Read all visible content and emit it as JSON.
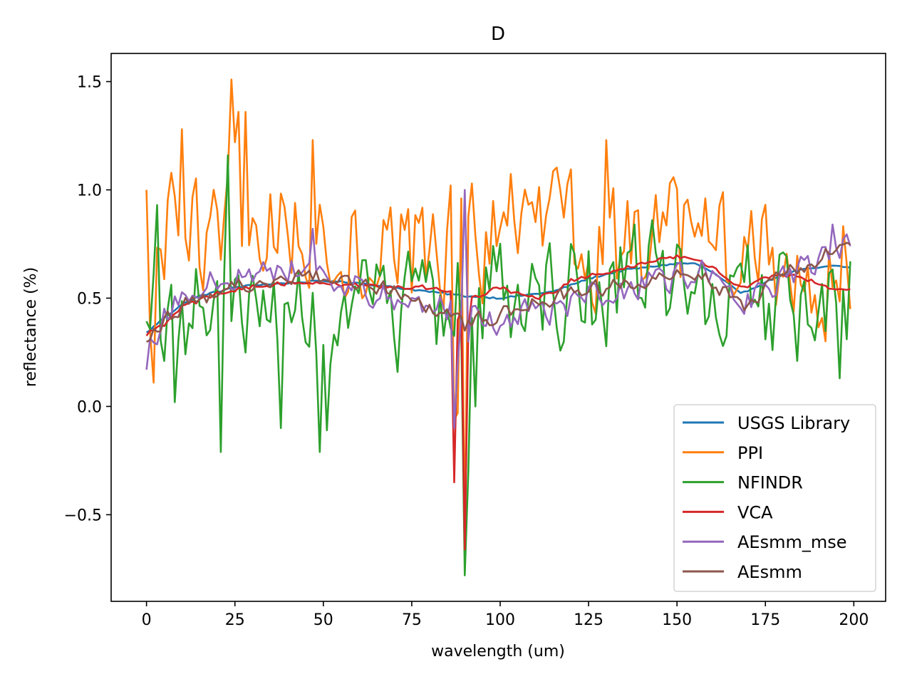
{
  "chart_data": {
    "type": "line",
    "title": "D",
    "xlabel": "wavelength (um)",
    "ylabel": "reflectance (%)",
    "xlim": [
      -10,
      209
    ],
    "ylim": [
      -0.9,
      1.63
    ],
    "xticks": [
      0,
      25,
      50,
      75,
      100,
      125,
      150,
      175,
      200
    ],
    "yticks": [
      -0.5,
      0.0,
      0.5,
      1.0,
      1.5
    ],
    "ytick_labels": [
      "−0.5",
      "0.0",
      "0.5",
      "1.0",
      "1.5"
    ],
    "legend_position": "lower-right",
    "series": [
      {
        "name": "USGS Library",
        "color": "#1f77b4",
        "kind": "smooth",
        "knots": [
          [
            0,
            0.34
          ],
          [
            5,
            0.41
          ],
          [
            10,
            0.47
          ],
          [
            15,
            0.51
          ],
          [
            20,
            0.53
          ],
          [
            25,
            0.55
          ],
          [
            30,
            0.56
          ],
          [
            40,
            0.57
          ],
          [
            50,
            0.58
          ],
          [
            60,
            0.57
          ],
          [
            70,
            0.55
          ],
          [
            80,
            0.53
          ],
          [
            90,
            0.51
          ],
          [
            100,
            0.5
          ],
          [
            105,
            0.51
          ],
          [
            110,
            0.52
          ],
          [
            115,
            0.53
          ],
          [
            120,
            0.56
          ],
          [
            125,
            0.59
          ],
          [
            130,
            0.61
          ],
          [
            135,
            0.63
          ],
          [
            140,
            0.64
          ],
          [
            145,
            0.65
          ],
          [
            150,
            0.66
          ],
          [
            155,
            0.66
          ],
          [
            160,
            0.62
          ],
          [
            165,
            0.56
          ],
          [
            168,
            0.52
          ],
          [
            172,
            0.55
          ],
          [
            176,
            0.58
          ],
          [
            180,
            0.61
          ],
          [
            185,
            0.63
          ],
          [
            190,
            0.64
          ],
          [
            195,
            0.65
          ],
          [
            199,
            0.64
          ]
        ],
        "noise": 0.004,
        "spikes": []
      },
      {
        "name": "PPI",
        "color": "#ff7f0e",
        "kind": "noisy",
        "knots": [
          [
            0,
            0.72
          ],
          [
            25,
            0.85
          ],
          [
            50,
            0.8
          ],
          [
            75,
            0.7
          ],
          [
            100,
            0.82
          ],
          [
            125,
            0.75
          ],
          [
            150,
            0.72
          ],
          [
            175,
            0.68
          ],
          [
            199,
            0.62
          ]
        ],
        "noise": 0.27,
        "spikes": [
          [
            0,
            1.0
          ],
          [
            1,
            0.35
          ],
          [
            2,
            0.11
          ],
          [
            10,
            1.28
          ],
          [
            24,
            1.51
          ],
          [
            25,
            1.22
          ],
          [
            26,
            1.36
          ],
          [
            28,
            1.36
          ],
          [
            47,
            1.23
          ],
          [
            87,
            -0.06
          ],
          [
            88,
            -0.03
          ],
          [
            90,
            -0.63
          ],
          [
            130,
            1.23
          ],
          [
            199,
            0.45
          ]
        ]
      },
      {
        "name": "NFINDR",
        "color": "#2ca02c",
        "kind": "noisy",
        "knots": [
          [
            0,
            0.42
          ],
          [
            25,
            0.45
          ],
          [
            50,
            0.38
          ],
          [
            75,
            0.42
          ],
          [
            100,
            0.55
          ],
          [
            125,
            0.55
          ],
          [
            150,
            0.58
          ],
          [
            175,
            0.45
          ],
          [
            199,
            0.4
          ]
        ],
        "noise": 0.24,
        "spikes": [
          [
            3,
            0.93
          ],
          [
            8,
            0.02
          ],
          [
            21,
            -0.21
          ],
          [
            23,
            1.16
          ],
          [
            38,
            -0.1
          ],
          [
            49,
            -0.21
          ],
          [
            51,
            -0.11
          ],
          [
            90,
            -0.78
          ],
          [
            91,
            -0.3
          ],
          [
            93,
            0.0
          ],
          [
            196,
            0.13
          ],
          [
            198,
            0.31
          ],
          [
            199,
            0.67
          ]
        ]
      },
      {
        "name": "VCA",
        "color": "#d62728",
        "kind": "smooth",
        "knots": [
          [
            0,
            0.33
          ],
          [
            5,
            0.38
          ],
          [
            10,
            0.46
          ],
          [
            15,
            0.49
          ],
          [
            20,
            0.52
          ],
          [
            25,
            0.54
          ],
          [
            30,
            0.55
          ],
          [
            40,
            0.57
          ],
          [
            50,
            0.57
          ],
          [
            60,
            0.56
          ],
          [
            70,
            0.55
          ],
          [
            80,
            0.55
          ],
          [
            86,
            0.53
          ],
          [
            88,
            -0.2
          ],
          [
            89,
            0.45
          ],
          [
            91,
            0.5
          ],
          [
            95,
            0.52
          ],
          [
            100,
            0.55
          ],
          [
            105,
            0.52
          ],
          [
            110,
            0.5
          ],
          [
            115,
            0.52
          ],
          [
            120,
            0.58
          ],
          [
            125,
            0.6
          ],
          [
            130,
            0.62
          ],
          [
            135,
            0.64
          ],
          [
            140,
            0.66
          ],
          [
            145,
            0.68
          ],
          [
            150,
            0.69
          ],
          [
            155,
            0.68
          ],
          [
            160,
            0.64
          ],
          [
            165,
            0.58
          ],
          [
            170,
            0.55
          ],
          [
            175,
            0.6
          ],
          [
            180,
            0.61
          ],
          [
            185,
            0.6
          ],
          [
            190,
            0.57
          ],
          [
            195,
            0.54
          ],
          [
            199,
            0.55
          ]
        ],
        "noise": 0.01,
        "spikes": [
          [
            87,
            -0.35
          ],
          [
            88,
            0.4
          ],
          [
            90,
            -0.66
          ],
          [
            91,
            0.36
          ]
        ]
      },
      {
        "name": "AEsmm_mse",
        "color": "#9467bd",
        "kind": "noisy",
        "knots": [
          [
            0,
            0.3
          ],
          [
            12,
            0.55
          ],
          [
            25,
            0.6
          ],
          [
            45,
            0.65
          ],
          [
            60,
            0.55
          ],
          [
            75,
            0.48
          ],
          [
            90,
            0.45
          ],
          [
            100,
            0.4
          ],
          [
            115,
            0.45
          ],
          [
            130,
            0.52
          ],
          [
            145,
            0.58
          ],
          [
            158,
            0.62
          ],
          [
            168,
            0.45
          ],
          [
            180,
            0.6
          ],
          [
            199,
            0.75
          ]
        ],
        "noise": 0.06,
        "spikes": [
          [
            0,
            0.17
          ],
          [
            47,
            0.82
          ],
          [
            87,
            -0.1
          ],
          [
            88,
            0.2
          ],
          [
            90,
            1.0
          ],
          [
            91,
            0.3
          ],
          [
            194,
            0.84
          ]
        ]
      },
      {
        "name": "AEsmm",
        "color": "#8c564b",
        "kind": "noisy",
        "knots": [
          [
            0,
            0.33
          ],
          [
            12,
            0.48
          ],
          [
            25,
            0.55
          ],
          [
            45,
            0.6
          ],
          [
            60,
            0.58
          ],
          [
            75,
            0.5
          ],
          [
            90,
            0.4
          ],
          [
            100,
            0.42
          ],
          [
            115,
            0.5
          ],
          [
            130,
            0.55
          ],
          [
            145,
            0.58
          ],
          [
            158,
            0.62
          ],
          [
            168,
            0.45
          ],
          [
            180,
            0.62
          ],
          [
            199,
            0.75
          ]
        ],
        "noise": 0.035,
        "spikes": [
          [
            90,
            0.35
          ]
        ]
      }
    ]
  }
}
